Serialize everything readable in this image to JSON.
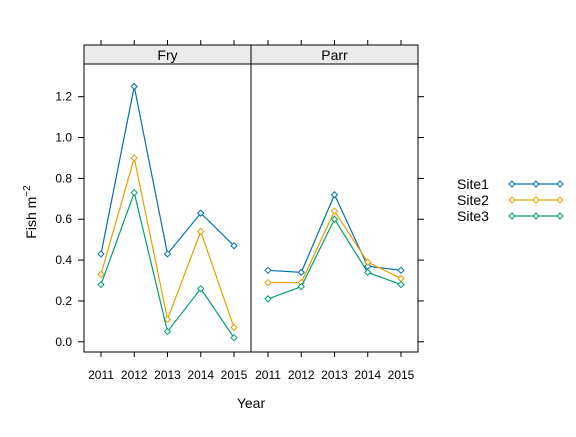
{
  "chart_data": {
    "type": "line",
    "title": "",
    "xlabel": "Year",
    "ylabel": "Fish m",
    "ylabel_superscript": "−2",
    "ylim": [
      -0.05,
      1.36
    ],
    "yticks": [
      0.0,
      0.2,
      0.4,
      0.6,
      0.8,
      1.0,
      1.2
    ],
    "ytick_labels": [
      "0.0",
      "0.2",
      "0.4",
      "0.6",
      "0.8",
      "1.0",
      "1.2"
    ],
    "x": [
      2011,
      2012,
      2013,
      2014,
      2015
    ],
    "x_labels": [
      "2011",
      "2012",
      "2013",
      "2014",
      "2015"
    ],
    "legend_position": "right",
    "grid": false,
    "panels": [
      {
        "name": "Fry",
        "series": [
          {
            "name": "Site1",
            "color": "#0072B2",
            "values": [
              0.43,
              1.25,
              0.43,
              0.63,
              0.47
            ]
          },
          {
            "name": "Site2",
            "color": "#E69F00",
            "values": [
              0.33,
              0.9,
              0.11,
              0.54,
              0.07
            ]
          },
          {
            "name": "Site3",
            "color": "#009E73",
            "values": [
              0.28,
              0.73,
              0.05,
              0.26,
              0.02
            ]
          }
        ]
      },
      {
        "name": "Parr",
        "series": [
          {
            "name": "Site1",
            "color": "#0072B2",
            "values": [
              0.35,
              0.34,
              0.72,
              0.37,
              0.35
            ]
          },
          {
            "name": "Site2",
            "color": "#E69F00",
            "values": [
              0.29,
              0.29,
              0.64,
              0.39,
              0.31
            ]
          },
          {
            "name": "Site3",
            "color": "#009E73",
            "values": [
              0.21,
              0.27,
              0.6,
              0.34,
              0.28
            ]
          }
        ]
      }
    ]
  }
}
